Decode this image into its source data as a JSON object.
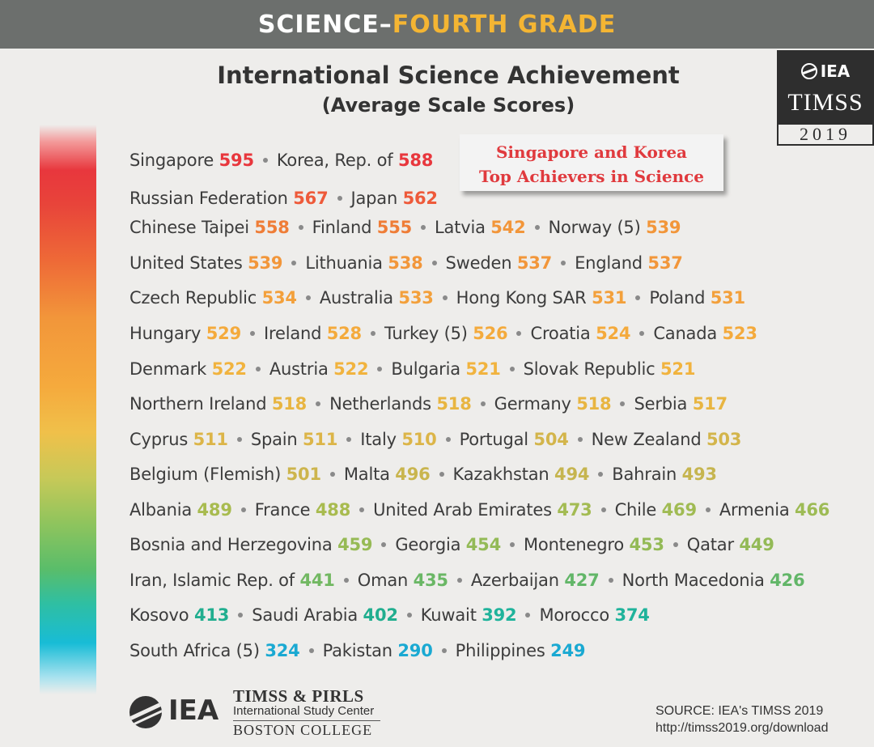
{
  "header": {
    "part1": "SCIENCE–",
    "part2": "FOURTH GRADE"
  },
  "title": {
    "line1": "International Science Achievement",
    "line2": "(Average Scale Scores)"
  },
  "badge": {
    "org": "IEA",
    "name": "TIMSS",
    "year": "2019"
  },
  "callout": {
    "line1": "Singapore and Korea",
    "line2": "Top Achievers in Science"
  },
  "colors": {
    "red": "#e8373d",
    "orange": "#ee6a37",
    "orange2": "#f2963a",
    "yellow": "#f0ad3b",
    "olive": "#d3b14a",
    "lime": "#9bbb4e",
    "green": "#55b768",
    "teal": "#1fb7a0",
    "cyan": "#1baed4"
  },
  "rows": [
    {
      "top": 186,
      "entries": [
        {
          "name": "Singapore",
          "score": "595",
          "color": "#e8373d"
        },
        {
          "name": "Korea, Rep. of",
          "score": "588",
          "color": "#e8373d"
        }
      ]
    },
    {
      "top": 233,
      "entries": [
        {
          "name": "Russian Federation",
          "score": "567",
          "color": "#ee5a3a"
        },
        {
          "name": "Japan",
          "score": "562",
          "color": "#ee5a3a"
        }
      ]
    },
    {
      "top": 269,
      "entries": [
        {
          "name": "Chinese Taipei",
          "score": "558",
          "color": "#ef7d37"
        },
        {
          "name": "Finland",
          "score": "555",
          "color": "#ef7d37"
        },
        {
          "name": "Latvia",
          "score": "542",
          "color": "#f2963a"
        },
        {
          "name": "Norway (5)",
          "score": "539",
          "color": "#f2963a"
        }
      ]
    },
    {
      "top": 313,
      "entries": [
        {
          "name": "United States",
          "score": "539",
          "color": "#f2963a"
        },
        {
          "name": "Lithuania",
          "score": "538",
          "color": "#f2963a"
        },
        {
          "name": "Sweden",
          "score": "537",
          "color": "#f2963a"
        },
        {
          "name": "England",
          "score": "537",
          "color": "#f2963a"
        }
      ]
    },
    {
      "top": 356,
      "entries": [
        {
          "name": "Czech Republic",
          "score": "534",
          "color": "#f3a03b"
        },
        {
          "name": "Australia",
          "score": "533",
          "color": "#f3a03b"
        },
        {
          "name": "Hong Kong SAR",
          "score": "531",
          "color": "#f3a03b"
        },
        {
          "name": "Poland",
          "score": "531",
          "color": "#f3a03b"
        }
      ]
    },
    {
      "top": 400,
      "entries": [
        {
          "name": "Hungary",
          "score": "529",
          "color": "#f4aa3c"
        },
        {
          "name": "Ireland",
          "score": "528",
          "color": "#f4aa3c"
        },
        {
          "name": "Turkey (5)",
          "score": "526",
          "color": "#f4aa3c"
        },
        {
          "name": "Croatia",
          "score": "524",
          "color": "#f4aa3c"
        },
        {
          "name": "Canada",
          "score": "523",
          "color": "#f4aa3c"
        }
      ]
    },
    {
      "top": 444,
      "entries": [
        {
          "name": "Denmark",
          "score": "522",
          "color": "#f1b33e"
        },
        {
          "name": "Austria",
          "score": "522",
          "color": "#f1b33e"
        },
        {
          "name": "Bulgaria",
          "score": "521",
          "color": "#f1b33e"
        },
        {
          "name": "Slovak Republic",
          "score": "521",
          "color": "#f1b33e"
        }
      ]
    },
    {
      "top": 487,
      "entries": [
        {
          "name": "Northern Ireland",
          "score": "518",
          "color": "#e8b541"
        },
        {
          "name": "Netherlands",
          "score": "518",
          "color": "#e8b541"
        },
        {
          "name": "Germany",
          "score": "518",
          "color": "#e8b541"
        },
        {
          "name": "Serbia",
          "score": "517",
          "color": "#e8b541"
        }
      ]
    },
    {
      "top": 531,
      "entries": [
        {
          "name": "Cyprus",
          "score": "511",
          "color": "#dcb548"
        },
        {
          "name": "Spain",
          "score": "511",
          "color": "#dcb548"
        },
        {
          "name": "Italy",
          "score": "510",
          "color": "#dcb548"
        },
        {
          "name": "Portugal",
          "score": "504",
          "color": "#d3b54b"
        },
        {
          "name": "New Zealand",
          "score": "503",
          "color": "#d3b54b"
        }
      ]
    },
    {
      "top": 574,
      "entries": [
        {
          "name": "Belgium (Flemish)",
          "score": "501",
          "color": "#cdb54d"
        },
        {
          "name": "Malta",
          "score": "496",
          "color": "#c9b54e"
        },
        {
          "name": "Kazakhstan",
          "score": "494",
          "color": "#c6b54f"
        },
        {
          "name": "Bahrain",
          "score": "493",
          "color": "#c6b54f"
        }
      ]
    },
    {
      "top": 618,
      "entries": [
        {
          "name": "Albania",
          "score": "489",
          "color": "#a8bb4f"
        },
        {
          "name": "France",
          "score": "488",
          "color": "#a8bb4f"
        },
        {
          "name": "United Arab Emirates",
          "score": "473",
          "color": "#a3bb52"
        },
        {
          "name": "Chile",
          "score": "469",
          "color": "#a0bb53"
        },
        {
          "name": "Armenia",
          "score": "466",
          "color": "#9dbb54"
        }
      ]
    },
    {
      "top": 661,
      "entries": [
        {
          "name": "Bosnia and Herzegovina",
          "score": "459",
          "color": "#96ba55"
        },
        {
          "name": "Georgia",
          "score": "454",
          "color": "#93ba56"
        },
        {
          "name": "Montenegro",
          "score": "453",
          "color": "#93ba56"
        },
        {
          "name": "Qatar",
          "score": "449",
          "color": "#93ba56"
        }
      ]
    },
    {
      "top": 705,
      "entries": [
        {
          "name": "Iran, Islamic Rep. of",
          "score": "441",
          "color": "#72b862"
        },
        {
          "name": "Oman",
          "score": "435",
          "color": "#6ab765"
        },
        {
          "name": "Azerbaijan",
          "score": "427",
          "color": "#62b668"
        },
        {
          "name": "North Macedonia",
          "score": "426",
          "color": "#62b668"
        }
      ]
    },
    {
      "top": 748,
      "entries": [
        {
          "name": "Kosovo",
          "score": "413",
          "color": "#21ae8f"
        },
        {
          "name": "Saudi Arabia",
          "score": "402",
          "color": "#21ae8f"
        },
        {
          "name": "Kuwait",
          "score": "392",
          "color": "#1fb39b"
        },
        {
          "name": "Morocco",
          "score": "374",
          "color": "#1fb39b"
        }
      ]
    },
    {
      "top": 792,
      "entries": [
        {
          "name": "South Africa (5)",
          "score": "324",
          "color": "#1aa9d2"
        },
        {
          "name": "Pakistan",
          "score": "290",
          "color": "#1aa9d2"
        },
        {
          "name": "Philippines",
          "score": "249",
          "color": "#1aa9d2"
        }
      ]
    }
  ],
  "footer": {
    "logo_org": "IEA",
    "logo_line1": "TIMSS & PIRLS",
    "logo_line2": "International Study Center",
    "logo_line3": "BOSTON COLLEGE",
    "source_line1": "SOURCE: IEA's TIMSS 2019",
    "source_line2": "http://timss2019.org/download"
  }
}
